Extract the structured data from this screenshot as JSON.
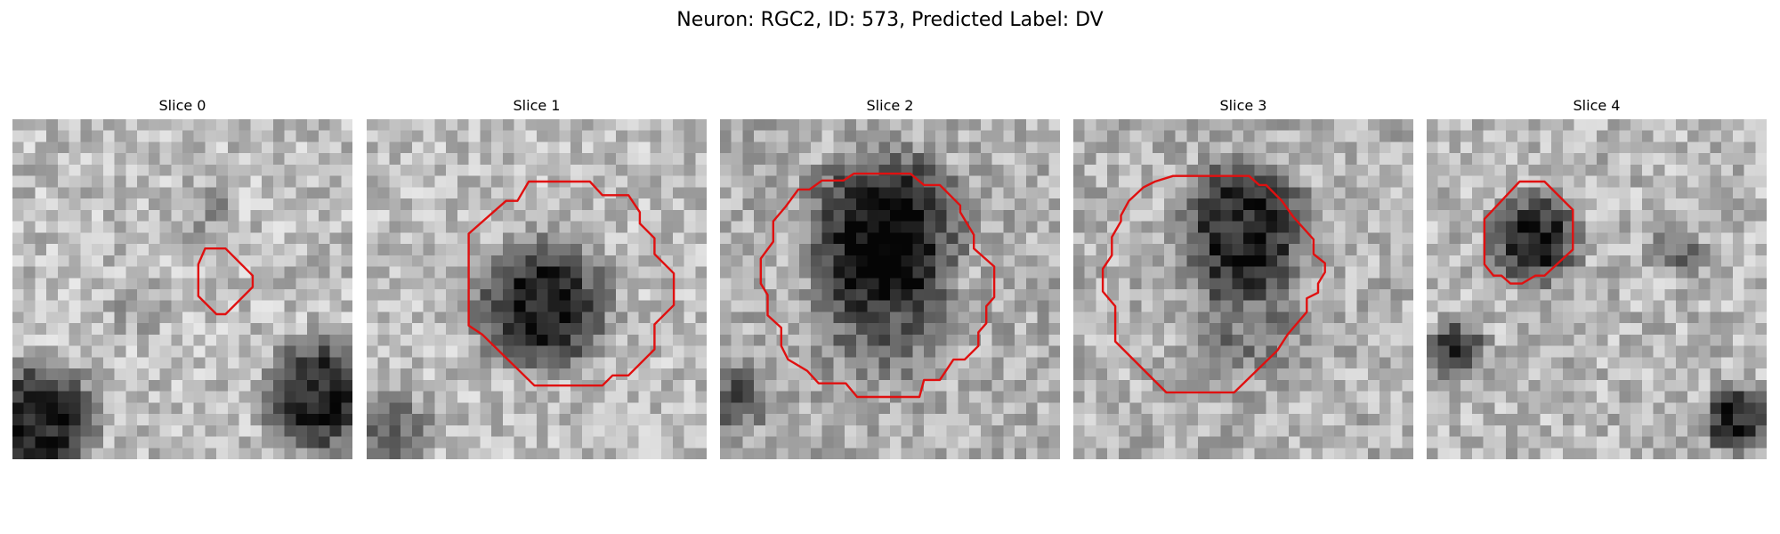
{
  "figure": {
    "title": "Neuron: RGC2, ID: 573, Predicted Label: DV"
  },
  "colors": {
    "background": "#ffffff",
    "roi_outline": "#e01010",
    "pixel_palette": "grayscale"
  },
  "panels": [
    {
      "title": "Slice 0",
      "roi": "small",
      "mark": "slice-0"
    },
    {
      "title": "Slice 1",
      "roi": "large",
      "mark": "slice-1"
    },
    {
      "title": "Slice 2",
      "roi": "large",
      "mark": "slice-2"
    },
    {
      "title": "Slice 3",
      "roi": "large",
      "mark": "slice-3"
    },
    {
      "title": "Slice 4",
      "roi": "medium",
      "mark": "slice-4"
    }
  ]
}
